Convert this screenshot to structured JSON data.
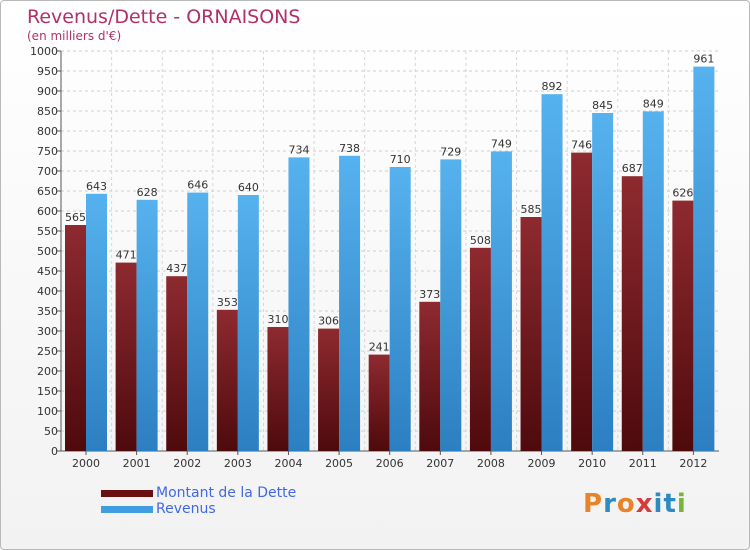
{
  "header": {
    "title": "Revenus/Dette - ORNAISONS",
    "subtitle": "(en milliers d'€)"
  },
  "colors": {
    "title": "#b0306a",
    "debt_bar": "#7a1a1e",
    "revenue_bar": "#3f9de0",
    "legend_text": "#4169e1"
  },
  "logo": {
    "text": "Proxiti",
    "letter_colors": [
      "#e8832a",
      "#2e8bc0",
      "#e8832a",
      "#d63b3b",
      "#2e8bc0",
      "#2e8bc0",
      "#7ab33c"
    ]
  },
  "chart_data": {
    "type": "bar",
    "title": "Revenus/Dette - ORNAISONS",
    "subtitle": "(en milliers d'€)",
    "categories": [
      "2000",
      "2001",
      "2002",
      "2003",
      "2004",
      "2005",
      "2006",
      "2007",
      "2008",
      "2009",
      "2010",
      "2011",
      "2012"
    ],
    "series": [
      {
        "name": "Montant de la Dette",
        "color": "#7a1a1e",
        "values": [
          565,
          471,
          437,
          353,
          310,
          306,
          241,
          373,
          508,
          585,
          746,
          687,
          626
        ]
      },
      {
        "name": "Revenus",
        "color": "#3f9de0",
        "values": [
          643,
          628,
          646,
          640,
          734,
          738,
          710,
          729,
          749,
          892,
          845,
          849,
          961
        ]
      }
    ],
    "ylim": [
      0,
      1000
    ],
    "ytick_step": 50,
    "grid": true,
    "legend_position": "bottom-left"
  }
}
